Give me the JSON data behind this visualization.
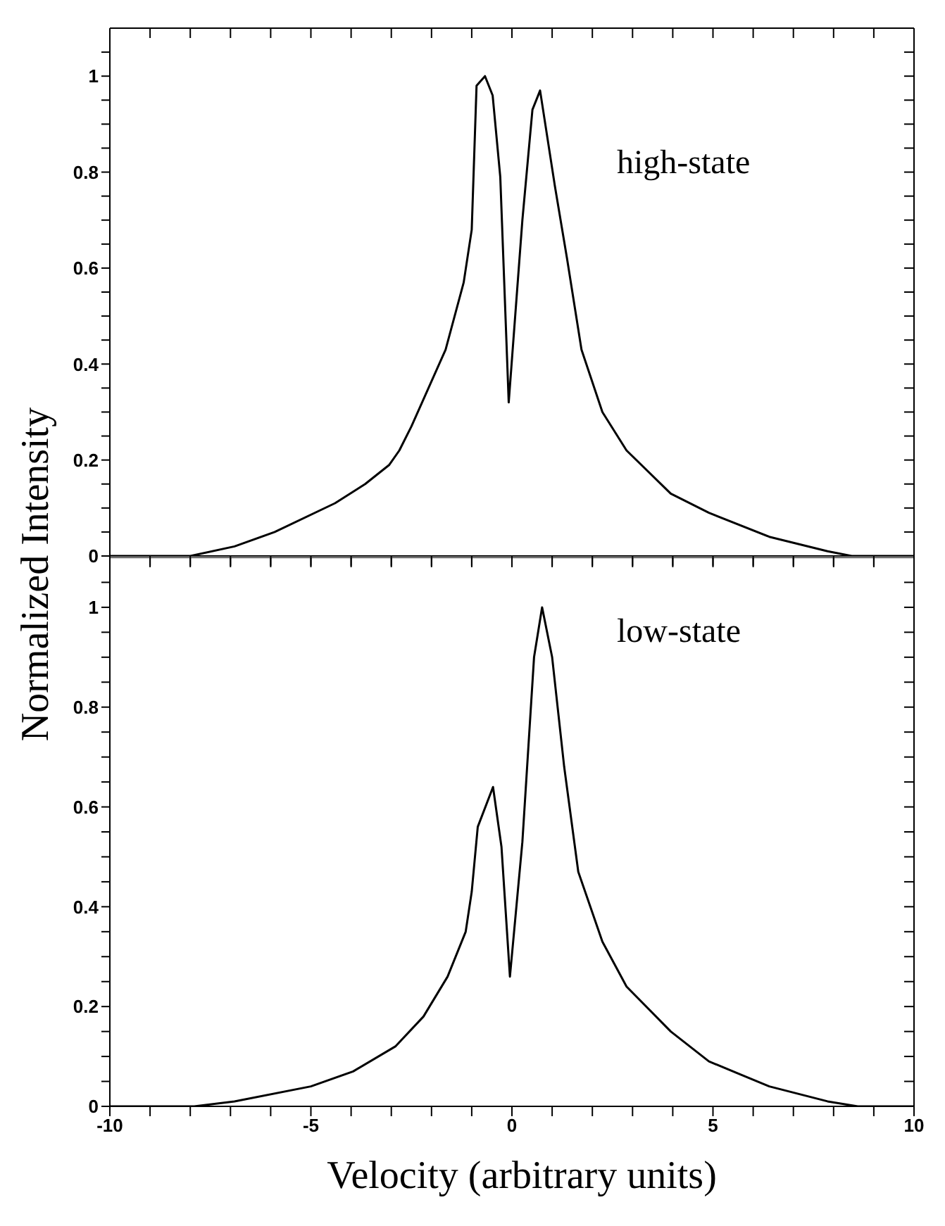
{
  "chart_data": [
    {
      "type": "line",
      "ylabel": "Normalized Intensity",
      "annotations": [
        "high-state"
      ],
      "tick_labels": "y",
      "marker": "none",
      "line_style": "solid",
      "xlim": [
        -10,
        10
      ],
      "ylim": [
        0,
        1.1
      ],
      "xticks": [
        -10,
        {
          "value": -9,
          "label": null
        },
        {
          "value": -8,
          "label": null
        },
        {
          "value": -7,
          "label": null
        },
        {
          "value": -6,
          "label": null
        },
        -5,
        {
          "value": -4,
          "label": null
        },
        {
          "value": -3,
          "label": null
        },
        {
          "value": -2,
          "label": null
        },
        {
          "value": -1,
          "label": null
        },
        0,
        {
          "value": 1,
          "label": null
        },
        {
          "value": 2,
          "label": null
        },
        {
          "value": 3,
          "label": null
        },
        {
          "value": 4,
          "label": null
        },
        5,
        {
          "value": 6,
          "label": null
        },
        {
          "value": 7,
          "label": null
        },
        {
          "value": 8,
          "label": null
        },
        {
          "value": 9,
          "label": null
        },
        10
      ],
      "yticks": [
        0,
        {
          "value": 0.05,
          "label": null
        },
        {
          "value": 0.1,
          "label": null
        },
        {
          "value": 0.15,
          "label": null
        },
        0.2,
        {
          "value": 0.25,
          "label": null
        },
        {
          "value": 0.3,
          "label": null
        },
        {
          "value": 0.35,
          "label": null
        },
        0.4,
        {
          "value": 0.45,
          "label": null
        },
        {
          "value": 0.5,
          "label": null
        },
        {
          "value": 0.55,
          "label": null
        },
        0.6,
        {
          "value": 0.65,
          "label": null
        },
        {
          "value": 0.7,
          "label": null
        },
        {
          "value": 0.75,
          "label": null
        },
        0.8,
        {
          "value": 0.85,
          "label": null
        },
        {
          "value": 0.9,
          "label": null
        },
        {
          "value": 0.95,
          "label": null
        },
        1,
        {
          "value": 1.05,
          "label": null
        }
      ],
      "x": [
        -10,
        -8.5,
        -8.0,
        -6.9,
        -5.9,
        -4.4,
        -3.65,
        -3.05,
        -2.8,
        -2.5,
        -1.65,
        -1.2,
        -1.0,
        -0.88,
        -0.67,
        -0.48,
        -0.29,
        -0.08,
        0.26,
        0.51,
        0.7,
        1.07,
        1.37,
        1.73,
        2.25,
        2.85,
        3.95,
        4.9,
        6.4,
        7.85,
        8.45,
        10
      ],
      "series": [
        {
          "color": "#000000",
          "values": [
            0,
            0,
            0.0,
            0.02,
            0.05,
            0.11,
            0.15,
            0.19,
            0.22,
            0.27,
            0.43,
            0.57,
            0.68,
            0.98,
            1.0,
            0.96,
            0.79,
            0.32,
            0.7,
            0.93,
            0.97,
            0.77,
            0.62,
            0.43,
            0.3,
            0.22,
            0.13,
            0.09,
            0.04,
            0.01,
            0,
            0
          ]
        }
      ]
    },
    {
      "type": "line",
      "xlabel": "Velocity (arbitrary units)",
      "annotations": [
        "low-state"
      ],
      "marker": "none",
      "line_style": "solid",
      "xlim": [
        -10,
        10
      ],
      "ylim": [
        0,
        1.1
      ],
      "xticks": [
        -10,
        {
          "value": -9,
          "label": null
        },
        {
          "value": -8,
          "label": null
        },
        {
          "value": -7,
          "label": null
        },
        {
          "value": -6,
          "label": null
        },
        -5,
        {
          "value": -4,
          "label": null
        },
        {
          "value": -3,
          "label": null
        },
        {
          "value": -2,
          "label": null
        },
        {
          "value": -1,
          "label": null
        },
        0,
        {
          "value": 1,
          "label": null
        },
        {
          "value": 2,
          "label": null
        },
        {
          "value": 3,
          "label": null
        },
        {
          "value": 4,
          "label": null
        },
        5,
        {
          "value": 6,
          "label": null
        },
        {
          "value": 7,
          "label": null
        },
        {
          "value": 8,
          "label": null
        },
        {
          "value": 9,
          "label": null
        },
        10
      ],
      "yticks": [
        0,
        {
          "value": 0.05,
          "label": null
        },
        {
          "value": 0.1,
          "label": null
        },
        {
          "value": 0.15,
          "label": null
        },
        0.2,
        {
          "value": 0.25,
          "label": null
        },
        {
          "value": 0.3,
          "label": null
        },
        {
          "value": 0.35,
          "label": null
        },
        0.4,
        {
          "value": 0.45,
          "label": null
        },
        {
          "value": 0.5,
          "label": null
        },
        {
          "value": 0.55,
          "label": null
        },
        0.6,
        {
          "value": 0.65,
          "label": null
        },
        {
          "value": 0.7,
          "label": null
        },
        {
          "value": 0.75,
          "label": null
        },
        0.8,
        {
          "value": 0.85,
          "label": null
        },
        {
          "value": 0.9,
          "label": null
        },
        {
          "value": 0.95,
          "label": null
        },
        1,
        {
          "value": 1.05,
          "label": null
        }
      ],
      "x": [
        -10,
        -7.9,
        -6.9,
        -5.0,
        -3.95,
        -2.9,
        -2.2,
        -1.6,
        -1.15,
        -1.0,
        -0.85,
        -0.47,
        -0.26,
        -0.05,
        0.26,
        0.55,
        0.75,
        1.0,
        1.3,
        1.65,
        2.25,
        2.85,
        3.95,
        4.9,
        6.4,
        7.85,
        8.6,
        10
      ],
      "series": [
        {
          "color": "#000000",
          "values": [
            0,
            0,
            0.01,
            0.04,
            0.07,
            0.12,
            0.18,
            0.26,
            0.35,
            0.43,
            0.56,
            0.64,
            0.52,
            0.26,
            0.53,
            0.9,
            1.0,
            0.9,
            0.68,
            0.47,
            0.33,
            0.24,
            0.15,
            0.09,
            0.04,
            0.01,
            0,
            0
          ]
        }
      ]
    }
  ]
}
